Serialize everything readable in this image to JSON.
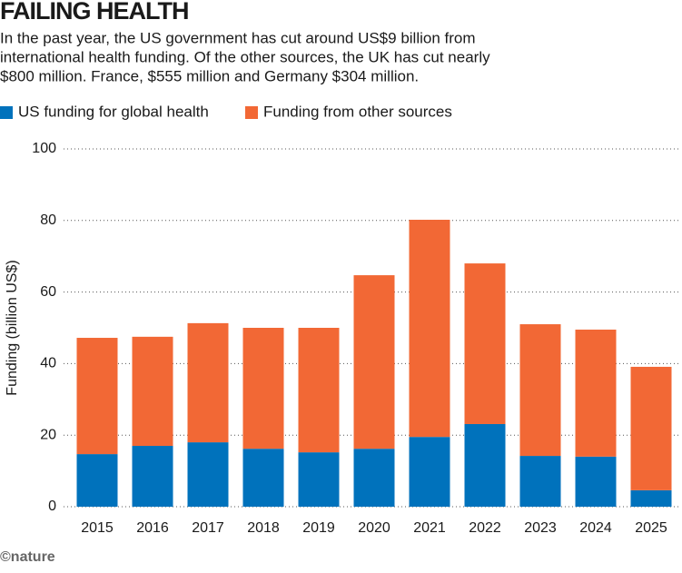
{
  "chart_data": {
    "type": "stacked-bar",
    "title": "FAILING HEALTH",
    "subtitle": [
      "In the past year, the US government has cut around US$9 billion from",
      "international health funding. Of the other sources, the UK has cut nearly",
      "$800 million. France, $555 million and Germany $304 million."
    ],
    "y_label": "Funding (billion US$)",
    "credit": "©nature",
    "categories": [
      "2015",
      "2016",
      "2017",
      "2018",
      "2019",
      "2020",
      "2021",
      "2022",
      "2023",
      "2024",
      "2025"
    ],
    "series": [
      {
        "name": "US funding for global health",
        "color": "#0072bc",
        "values": [
          14.7,
          17.0,
          18.0,
          16.2,
          15.2,
          16.2,
          19.5,
          23.1,
          14.2,
          14.0,
          4.6
        ]
      },
      {
        "name": "Funding from other sources",
        "color": "#f26835",
        "values": [
          32.5,
          30.5,
          33.3,
          33.8,
          34.8,
          48.5,
          60.7,
          44.9,
          36.8,
          35.5,
          34.5
        ]
      }
    ],
    "ylim": [
      0,
      100
    ],
    "yticks": [
      0,
      20,
      40,
      60,
      80,
      100
    ],
    "grid": true
  }
}
